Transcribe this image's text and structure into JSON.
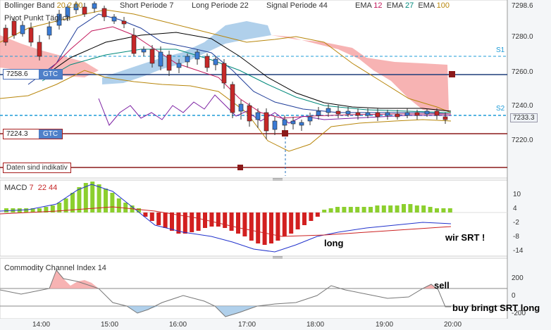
{
  "top_legend": {
    "bollinger_label": "Bollinger Band",
    "bollinger_v1": "20",
    "bollinger_v2": "2.00",
    "short_label": "Short Periode",
    "short_v": "7",
    "long_label": "Long Periode",
    "long_v": "22",
    "signal_label": "Signal Periode",
    "signal_v": "44",
    "ema_label": "EMA",
    "ema1": "12",
    "ema2": "27",
    "ema3": "100",
    "pivot_label": "Pivot Punkt  Täglich"
  },
  "orders": {
    "order1_price": "7258.6",
    "order1_type": "GTC",
    "order2_price": "7224.3",
    "order2_type": "GTC",
    "note": "Daten sind indikativ"
  },
  "price_axis": {
    "ticks": [
      "7298.6",
      "7280.0",
      "7260.0",
      "7240.0",
      "7220.0"
    ],
    "current": "7233.3",
    "s1": "S1",
    "s2": "S2"
  },
  "macd": {
    "label": "MACD",
    "v1": "7",
    "v2": "22",
    "v3": "44",
    "ticks": [
      "10",
      "4",
      "-2",
      "-8",
      "-14"
    ],
    "ann_long": "long",
    "ann_srt": "wir SRT !"
  },
  "cci": {
    "label": "Commodity Channel Index",
    "v": "14",
    "ticks": [
      "200",
      "0",
      "-200"
    ],
    "ann_sell": "sell",
    "ann_buy": "buy bringt SRT long"
  },
  "time_axis": [
    "14:00",
    "15:00",
    "16:00",
    "17:00",
    "18:00",
    "19:00",
    "20:00"
  ],
  "colors": {
    "bull": "#3a7bd5",
    "bear": "#c62828",
    "macd_pos": "#8ccf2e",
    "macd_neg": "#d21f1f",
    "cloud_bear": "#f5a0a0",
    "cloud_bull": "#9cc4e6",
    "level": "#8b1a1a"
  }
}
